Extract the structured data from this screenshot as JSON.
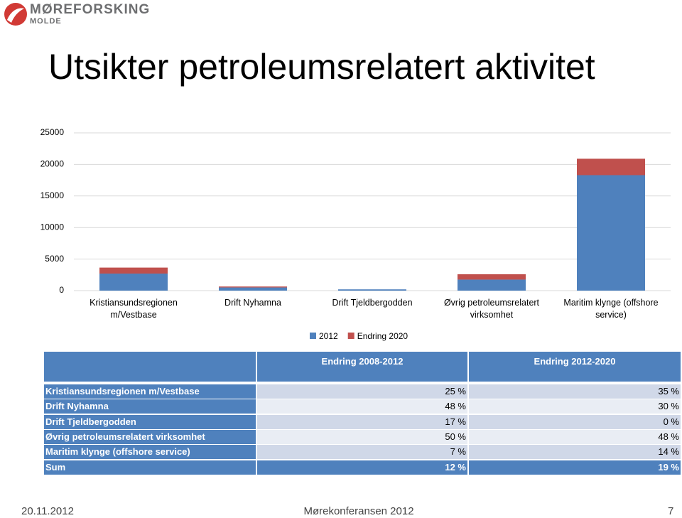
{
  "header": {
    "logo_name": "MØREFORSKING",
    "logo_sub": "MOLDE",
    "title": "Utsikter petroleumsrelatert aktivitet"
  },
  "chart_data": {
    "type": "stacked-bar",
    "categories": [
      "Kristiansundsregionen m/Vestbase",
      "Drift Nyhamna",
      "Drift Tjeldbergodden",
      "Øvrig petroleumsrelatert virksomhet",
      "Maritim klynge (offshore service)"
    ],
    "series": [
      {
        "name": "2012",
        "color": "#4f81bd",
        "values": [
          2700,
          500,
          200,
          1750,
          18300
        ]
      },
      {
        "name": "Endring 2020",
        "color": "#c0504d",
        "values": [
          950,
          150,
          0,
          850,
          2600
        ]
      }
    ],
    "ylim": [
      0,
      25000
    ],
    "yticks": [
      0,
      5000,
      10000,
      15000,
      20000,
      25000
    ],
    "grid": true,
    "legend": "bottom"
  },
  "table": {
    "header": [
      "Endring 2008-2012",
      "Endring 2012-2020"
    ],
    "rows": [
      [
        "Kristiansundsregionen m/Vestbase",
        "25 %",
        "35 %"
      ],
      [
        "Drift Nyhamna",
        "48 %",
        "30 %"
      ],
      [
        "Drift Tjeldbergodden",
        "17 %",
        "0 %"
      ],
      [
        "Øvrig petroleumsrelatert virksomhet",
        "50 %",
        "48 %"
      ],
      [
        "Maritim klynge (offshore service)",
        "7 %",
        "14 %"
      ],
      [
        "Sum",
        "12 %",
        "19 %"
      ]
    ]
  },
  "footer": {
    "date": "20.11.2012",
    "event": "Mørekonferansen 2012",
    "page": "7"
  }
}
